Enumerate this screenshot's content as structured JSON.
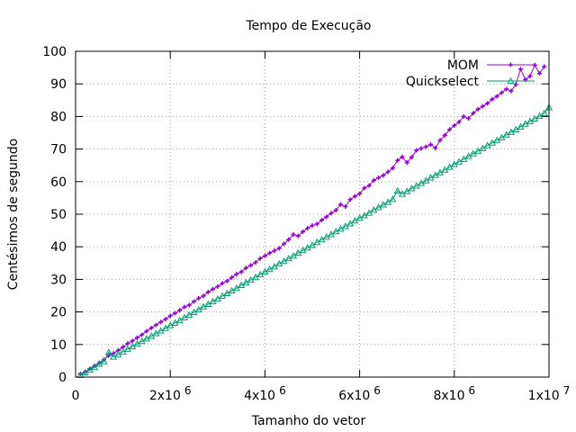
{
  "chart_data": {
    "type": "line",
    "title": "Tempo de Execução",
    "xlabel": "Tamanho do vetor",
    "ylabel": "Centésimos de segundo",
    "xlim": [
      0,
      10000000
    ],
    "ylim": [
      0,
      100
    ],
    "grid": true,
    "legend_position": "top-right",
    "x_ticks": [
      {
        "value": 0,
        "base": "0",
        "exp": ""
      },
      {
        "value": 2000000,
        "base": "2x10",
        "exp": "6"
      },
      {
        "value": 4000000,
        "base": "4x10",
        "exp": "6"
      },
      {
        "value": 6000000,
        "base": "6x10",
        "exp": "6"
      },
      {
        "value": 8000000,
        "base": "8x10",
        "exp": "6"
      },
      {
        "value": 10000000,
        "base": "1x10",
        "exp": "7"
      }
    ],
    "y_ticks": [
      0,
      10,
      20,
      30,
      40,
      50,
      60,
      70,
      80,
      90,
      100
    ],
    "series": [
      {
        "name": "MOM",
        "color": "#9400d3",
        "marker": "plus",
        "points": [
          [
            100000,
            1.0
          ],
          [
            200000,
            1.6
          ],
          [
            300000,
            2.6
          ],
          [
            400000,
            3.5
          ],
          [
            500000,
            4.4
          ],
          [
            600000,
            5.4
          ],
          [
            700000,
            6.6
          ],
          [
            800000,
            7.3
          ],
          [
            900000,
            8.2
          ],
          [
            1000000,
            9.2
          ],
          [
            1100000,
            10.3
          ],
          [
            1200000,
            11.1
          ],
          [
            1300000,
            12.1
          ],
          [
            1400000,
            13.0
          ],
          [
            1500000,
            14.1
          ],
          [
            1600000,
            15.1
          ],
          [
            1700000,
            16.0
          ],
          [
            1800000,
            16.9
          ],
          [
            1900000,
            17.8
          ],
          [
            2000000,
            18.8
          ],
          [
            2100000,
            19.6
          ],
          [
            2200000,
            20.5
          ],
          [
            2300000,
            21.5
          ],
          [
            2400000,
            22.1
          ],
          [
            2500000,
            23.2
          ],
          [
            2600000,
            24.2
          ],
          [
            2700000,
            24.9
          ],
          [
            2800000,
            26.1
          ],
          [
            2900000,
            27.0
          ],
          [
            3000000,
            27.8
          ],
          [
            3100000,
            28.8
          ],
          [
            3200000,
            29.5
          ],
          [
            3300000,
            30.6
          ],
          [
            3400000,
            31.6
          ],
          [
            3500000,
            32.3
          ],
          [
            3600000,
            33.5
          ],
          [
            3700000,
            34.3
          ],
          [
            3800000,
            35.2
          ],
          [
            3900000,
            36.4
          ],
          [
            4000000,
            37.2
          ],
          [
            4100000,
            38.1
          ],
          [
            4200000,
            38.8
          ],
          [
            4300000,
            39.5
          ],
          [
            4400000,
            40.9
          ],
          [
            4500000,
            42.2
          ],
          [
            4600000,
            43.8
          ],
          [
            4700000,
            43.3
          ],
          [
            4800000,
            44.6
          ],
          [
            4900000,
            45.7
          ],
          [
            5000000,
            46.5
          ],
          [
            5100000,
            47.0
          ],
          [
            5200000,
            48.2
          ],
          [
            5300000,
            49.2
          ],
          [
            5400000,
            50.3
          ],
          [
            5500000,
            51.2
          ],
          [
            5600000,
            53.0
          ],
          [
            5700000,
            52.3
          ],
          [
            5800000,
            54.5
          ],
          [
            5900000,
            55.5
          ],
          [
            6000000,
            56.3
          ],
          [
            6100000,
            58.0
          ],
          [
            6200000,
            58.8
          ],
          [
            6300000,
            60.4
          ],
          [
            6400000,
            61.2
          ],
          [
            6500000,
            61.9
          ],
          [
            6600000,
            63.0
          ],
          [
            6700000,
            64.2
          ],
          [
            6800000,
            66.5
          ],
          [
            6900000,
            67.6
          ],
          [
            7000000,
            65.8
          ],
          [
            7100000,
            67.5
          ],
          [
            7200000,
            69.6
          ],
          [
            7300000,
            70.2
          ],
          [
            7400000,
            70.7
          ],
          [
            7500000,
            71.4
          ],
          [
            7600000,
            70.3
          ],
          [
            7700000,
            72.7
          ],
          [
            7800000,
            74.2
          ],
          [
            7900000,
            76.0
          ],
          [
            8000000,
            77.2
          ],
          [
            8100000,
            78.3
          ],
          [
            8200000,
            80.0
          ],
          [
            8300000,
            79.4
          ],
          [
            8400000,
            81.0
          ],
          [
            8500000,
            82.2
          ],
          [
            8600000,
            83.1
          ],
          [
            8700000,
            84.0
          ],
          [
            8800000,
            85.3
          ],
          [
            8900000,
            86.2
          ],
          [
            9000000,
            87.3
          ],
          [
            9100000,
            88.4
          ],
          [
            9200000,
            87.8
          ],
          [
            9300000,
            89.8
          ],
          [
            9400000,
            94.5
          ],
          [
            9500000,
            91.3
          ],
          [
            9600000,
            92.4
          ],
          [
            9700000,
            95.8
          ],
          [
            9800000,
            93.2
          ],
          [
            9900000,
            95.3
          ]
        ]
      },
      {
        "name": "Quickselect",
        "color": "#009e73",
        "marker": "triangle",
        "points": [
          [
            100000,
            0.6
          ],
          [
            200000,
            1.4
          ],
          [
            300000,
            2.2
          ],
          [
            400000,
            3.0
          ],
          [
            500000,
            4.0
          ],
          [
            600000,
            4.8
          ],
          [
            700000,
            7.6
          ],
          [
            800000,
            6.2
          ],
          [
            900000,
            7.0
          ],
          [
            1000000,
            7.8
          ],
          [
            1100000,
            8.6
          ],
          [
            1200000,
            9.4
          ],
          [
            1300000,
            10.2
          ],
          [
            1400000,
            11.0
          ],
          [
            1500000,
            11.8
          ],
          [
            1600000,
            12.6
          ],
          [
            1700000,
            13.4
          ],
          [
            1800000,
            14.2
          ],
          [
            1900000,
            15.0
          ],
          [
            2000000,
            15.9
          ],
          [
            2100000,
            16.6
          ],
          [
            2200000,
            17.4
          ],
          [
            2300000,
            18.3
          ],
          [
            2400000,
            19.1
          ],
          [
            2500000,
            19.9
          ],
          [
            2600000,
            20.7
          ],
          [
            2700000,
            21.6
          ],
          [
            2800000,
            22.4
          ],
          [
            2900000,
            23.2
          ],
          [
            3000000,
            24.0
          ],
          [
            3100000,
            24.9
          ],
          [
            3200000,
            25.7
          ],
          [
            3300000,
            26.5
          ],
          [
            3400000,
            27.3
          ],
          [
            3500000,
            28.2
          ],
          [
            3600000,
            29.0
          ],
          [
            3700000,
            29.8
          ],
          [
            3800000,
            30.6
          ],
          [
            3900000,
            31.5
          ],
          [
            4000000,
            32.3
          ],
          [
            4100000,
            33.1
          ],
          [
            4200000,
            33.9
          ],
          [
            4300000,
            34.8
          ],
          [
            4400000,
            35.6
          ],
          [
            4500000,
            36.4
          ],
          [
            4600000,
            37.2
          ],
          [
            4700000,
            38.1
          ],
          [
            4800000,
            38.9
          ],
          [
            4900000,
            39.7
          ],
          [
            5000000,
            40.5
          ],
          [
            5100000,
            41.4
          ],
          [
            5200000,
            42.2
          ],
          [
            5300000,
            43.0
          ],
          [
            5400000,
            43.8
          ],
          [
            5500000,
            44.7
          ],
          [
            5600000,
            45.5
          ],
          [
            5700000,
            46.3
          ],
          [
            5800000,
            47.1
          ],
          [
            5900000,
            48.0
          ],
          [
            6000000,
            48.8
          ],
          [
            6100000,
            49.6
          ],
          [
            6200000,
            50.4
          ],
          [
            6300000,
            51.3
          ],
          [
            6400000,
            52.1
          ],
          [
            6500000,
            52.9
          ],
          [
            6600000,
            53.7
          ],
          [
            6700000,
            54.6
          ],
          [
            6800000,
            57.2
          ],
          [
            6900000,
            56.2
          ],
          [
            7000000,
            57.0
          ],
          [
            7100000,
            57.9
          ],
          [
            7200000,
            58.7
          ],
          [
            7300000,
            59.5
          ],
          [
            7400000,
            60.3
          ],
          [
            7500000,
            61.2
          ],
          [
            7600000,
            62.0
          ],
          [
            7700000,
            62.8
          ],
          [
            7800000,
            63.6
          ],
          [
            7900000,
            64.5
          ],
          [
            8000000,
            65.3
          ],
          [
            8100000,
            66.1
          ],
          [
            8200000,
            66.9
          ],
          [
            8300000,
            67.8
          ],
          [
            8400000,
            68.6
          ],
          [
            8500000,
            69.4
          ],
          [
            8600000,
            70.2
          ],
          [
            8700000,
            71.1
          ],
          [
            8800000,
            71.9
          ],
          [
            8900000,
            72.7
          ],
          [
            9000000,
            73.5
          ],
          [
            9100000,
            74.4
          ],
          [
            9200000,
            75.2
          ],
          [
            9300000,
            76.0
          ],
          [
            9400000,
            76.8
          ],
          [
            9500000,
            77.7
          ],
          [
            9600000,
            78.5
          ],
          [
            9700000,
            79.3
          ],
          [
            9800000,
            80.1
          ],
          [
            9900000,
            81.0
          ],
          [
            10000000,
            82.8
          ]
        ]
      }
    ]
  }
}
